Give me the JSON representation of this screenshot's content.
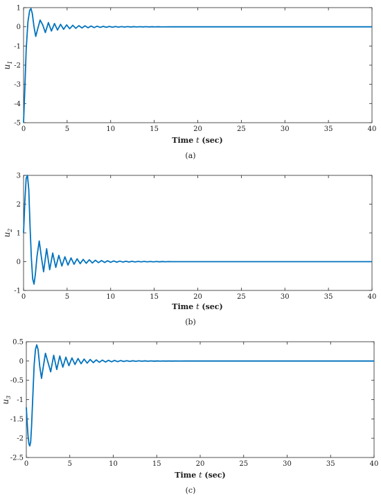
{
  "chart_data": [
    {
      "type": "line",
      "panel_label": "(a)",
      "ylabel_symbol": "u",
      "ylabel_sub": "1",
      "xlabel_prefix": "Time ",
      "xlabel_var": "t",
      "xlabel_suffix": " (sec)",
      "xlim": [
        0,
        40
      ],
      "ylim": [
        -5,
        1
      ],
      "xticks": [
        "0",
        "5",
        "10",
        "15",
        "20",
        "25",
        "30",
        "35",
        "40"
      ],
      "yticks": [
        "-5",
        "-4",
        "-3",
        "-2",
        "-1",
        "0",
        "1"
      ],
      "line_color": "#0072BD",
      "series": [
        {
          "x": [
            0,
            0.15,
            0.3,
            0.5,
            0.7,
            0.85,
            1.0,
            1.2,
            1.4,
            1.6,
            1.9,
            2.2,
            2.5,
            2.85,
            3.2,
            3.55,
            3.9,
            4.25,
            4.6,
            4.95,
            5.3,
            5.65,
            6.0,
            6.35,
            6.7,
            7.05,
            7.4,
            7.75,
            8.1,
            8.45,
            8.8,
            9.15,
            9.5,
            9.85,
            10.2,
            10.55,
            10.9,
            11.25,
            11.6,
            11.95,
            12.3,
            12.65,
            13.0,
            13.35,
            13.7,
            14.05,
            14.4,
            14.75,
            15.1,
            15.45,
            15.8,
            17,
            20,
            25,
            30,
            35,
            40
          ],
          "y": [
            -5,
            -3.2,
            -1.2,
            0.25,
            0.85,
            0.95,
            0.7,
            0.0,
            -0.5,
            -0.15,
            0.35,
            0.1,
            -0.3,
            0.22,
            -0.22,
            0.17,
            -0.17,
            0.13,
            -0.13,
            0.1,
            -0.1,
            0.08,
            -0.08,
            0.06,
            -0.06,
            0.05,
            -0.05,
            0.04,
            -0.04,
            0.03,
            -0.03,
            0.025,
            -0.025,
            0.02,
            -0.02,
            0.015,
            -0.015,
            0.012,
            -0.012,
            0.01,
            -0.01,
            0.008,
            -0.008,
            0.006,
            -0.006,
            0.005,
            -0.005,
            0.004,
            -0.004,
            0.003,
            -0.003,
            0,
            0,
            0,
            0,
            0,
            0
          ]
        }
      ]
    },
    {
      "type": "line",
      "panel_label": "(b)",
      "ylabel_symbol": "u",
      "ylabel_sub": "2",
      "xlabel_prefix": "Time ",
      "xlabel_var": "t",
      "xlabel_suffix": " (sec)",
      "xlim": [
        0,
        40
      ],
      "ylim": [
        -1,
        3
      ],
      "xticks": [
        "0",
        "5",
        "10",
        "15",
        "20",
        "25",
        "30",
        "35",
        "40"
      ],
      "yticks": [
        "-1",
        "0",
        "1",
        "2",
        "3"
      ],
      "line_color": "#0072BD",
      "series": [
        {
          "x": [
            0,
            0.15,
            0.3,
            0.45,
            0.6,
            0.75,
            0.9,
            1.05,
            1.2,
            1.35,
            1.55,
            1.8,
            2.05,
            2.3,
            2.65,
            3.0,
            3.35,
            3.7,
            4.05,
            4.4,
            4.75,
            5.1,
            5.45,
            5.8,
            6.15,
            6.5,
            6.85,
            7.2,
            7.55,
            7.9,
            8.25,
            8.6,
            8.95,
            9.3,
            9.65,
            10.0,
            10.35,
            10.7,
            11.05,
            11.4,
            11.75,
            12.1,
            12.45,
            12.8,
            13.15,
            13.5,
            13.85,
            14.2,
            14.55,
            14.9,
            15.25,
            15.6,
            15.95,
            16.3,
            16.65,
            17.0,
            18.5,
            20,
            25,
            30,
            35,
            40
          ],
          "y": [
            1.0,
            2.1,
            2.9,
            3.0,
            2.5,
            1.2,
            0.1,
            -0.6,
            -0.78,
            -0.45,
            0.2,
            0.72,
            0.15,
            -0.35,
            0.45,
            -0.28,
            0.3,
            -0.2,
            0.22,
            -0.15,
            0.17,
            -0.12,
            0.13,
            -0.09,
            0.1,
            -0.07,
            0.08,
            -0.055,
            0.065,
            -0.045,
            0.05,
            -0.035,
            0.04,
            -0.028,
            0.032,
            -0.022,
            0.025,
            -0.018,
            0.02,
            -0.014,
            0.016,
            -0.011,
            0.013,
            -0.009,
            0.01,
            -0.007,
            0.008,
            -0.006,
            0.006,
            -0.005,
            0.005,
            -0.004,
            0.004,
            -0.003,
            0.003,
            0,
            0,
            0,
            0,
            0,
            0,
            0
          ]
        }
      ]
    },
    {
      "type": "line",
      "panel_label": "(c)",
      "ylabel_symbol": "u",
      "ylabel_sub": "3",
      "xlabel_prefix": "Time ",
      "xlabel_var": "t",
      "xlabel_suffix": " (sec)",
      "xlim": [
        0,
        40
      ],
      "ylim": [
        -2.5,
        0.5
      ],
      "xticks": [
        "0",
        "5",
        "10",
        "15",
        "20",
        "25",
        "30",
        "35",
        "40"
      ],
      "yticks": [
        "-2.5",
        "-2",
        "-1.5",
        "-1",
        "-0.5",
        "0",
        "0.5"
      ],
      "line_color": "#0072BD",
      "series": [
        {
          "x": [
            0,
            0.1,
            0.2,
            0.3,
            0.4,
            0.5,
            0.6,
            0.75,
            0.9,
            1.05,
            1.2,
            1.35,
            1.55,
            1.75,
            1.95,
            2.2,
            2.45,
            2.8,
            3.15,
            3.5,
            3.85,
            4.2,
            4.55,
            4.9,
            5.25,
            5.6,
            5.95,
            6.3,
            6.65,
            7.0,
            7.35,
            7.7,
            8.05,
            8.4,
            8.75,
            9.1,
            9.45,
            9.8,
            10.15,
            10.5,
            10.85,
            11.2,
            11.55,
            11.9,
            12.25,
            12.6,
            12.95,
            13.3,
            13.65,
            14.0,
            14.35,
            14.7,
            15.05,
            15.4,
            15.75,
            16.1,
            16.45,
            16.8,
            17.15,
            17.5,
            18.5,
            20,
            25,
            30,
            35,
            40
          ],
          "y": [
            -1.2,
            -1.6,
            -1.95,
            -2.15,
            -2.2,
            -2.1,
            -1.7,
            -0.9,
            -0.1,
            0.3,
            0.42,
            0.3,
            -0.15,
            -0.45,
            -0.15,
            0.2,
            0.0,
            -0.28,
            0.15,
            -0.22,
            0.13,
            -0.16,
            0.1,
            -0.12,
            0.08,
            -0.09,
            0.065,
            -0.07,
            0.05,
            -0.055,
            0.04,
            -0.042,
            0.03,
            -0.033,
            0.024,
            -0.026,
            0.019,
            -0.02,
            0.015,
            -0.016,
            0.012,
            -0.012,
            0.009,
            -0.01,
            0.007,
            -0.008,
            0.006,
            -0.006,
            0.005,
            -0.005,
            0.004,
            -0.004,
            0.003,
            -0.003,
            0.002,
            -0.002,
            0.002,
            -0.002,
            0.001,
            -0.001,
            0,
            0,
            0,
            0,
            0,
            0
          ]
        }
      ]
    }
  ]
}
